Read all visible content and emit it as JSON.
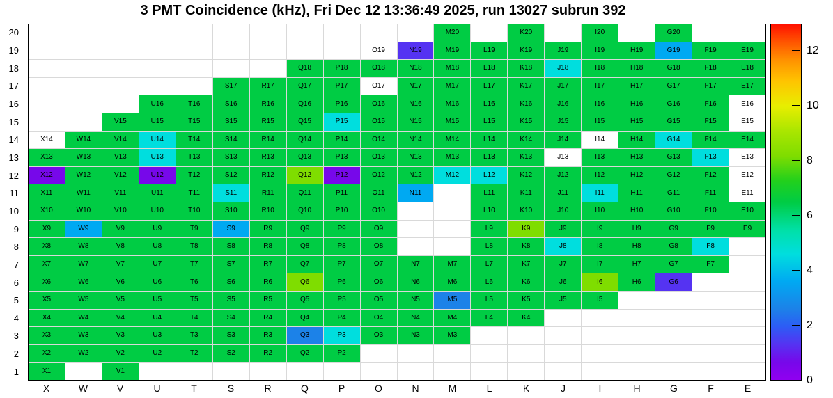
{
  "title": "3 PMT Coincidence (kHz), Fri Dec 12 13:36:49 2025, run 13027 subrun 392",
  "chart_data": {
    "type": "heatmap",
    "title": "3 PMT Coincidence (kHz), Fri Dec 12 13:36:49 2025, run 13027 subrun 392",
    "value_unit": "kHz",
    "x_categories": [
      "X",
      "W",
      "V",
      "U",
      "T",
      "S",
      "R",
      "Q",
      "P",
      "O",
      "N",
      "M",
      "L",
      "K",
      "J",
      "I",
      "H",
      "G",
      "F",
      "E"
    ],
    "y_ticks_top_to_bottom": [
      20,
      19,
      18,
      17,
      16,
      15,
      14,
      13,
      12,
      11,
      10,
      9,
      8,
      7,
      6,
      5,
      4,
      3,
      2,
      1
    ],
    "zlim": [
      0,
      13
    ],
    "colorbar_ticks": [
      0,
      2,
      4,
      6,
      8,
      10,
      12
    ],
    "legend_position": "right",
    "grid": true,
    "palette": {
      "g": {
        "hex": "#00cc44",
        "value": 6.5,
        "meaning": "green ~6.5 kHz"
      },
      "yg": {
        "hex": "#7fdd00",
        "value": 8.2,
        "meaning": "yellow-green ~8 kHz"
      },
      "c": {
        "hex": "#00dede",
        "value": 4.6,
        "meaning": "cyan ~4.5 kHz"
      },
      "bc": {
        "hex": "#00a9f2",
        "value": 3.6,
        "meaning": "blue-cyan ~3.5 kHz"
      },
      "b": {
        "hex": "#1c82e8",
        "value": 2.6,
        "meaning": "blue ~2.5 kHz"
      },
      "bv": {
        "hex": "#5533f2",
        "value": 1.3,
        "meaning": "blue-violet ~1.3 kHz"
      },
      "p": {
        "hex": "#7708ea",
        "value": 0.6,
        "meaning": "violet ~0.6 kHz"
      },
      "w": {
        "hex": "#ffffff",
        "value": null,
        "meaning": "labeled cell, no fill value shown"
      }
    },
    "rows": [
      {
        "y": 20,
        "cells": [
          null,
          null,
          null,
          null,
          null,
          null,
          null,
          null,
          null,
          null,
          null,
          "g",
          null,
          "g",
          null,
          "g",
          null,
          "g",
          null,
          null
        ]
      },
      {
        "y": 19,
        "cells": [
          null,
          null,
          null,
          null,
          null,
          null,
          null,
          null,
          null,
          "w",
          "bv",
          "g",
          "g",
          "g",
          "g",
          "g",
          "g",
          "bc",
          "g",
          "g"
        ]
      },
      {
        "y": 18,
        "cells": [
          null,
          null,
          null,
          null,
          null,
          null,
          null,
          "g",
          "g",
          "g",
          "g",
          "g",
          "g",
          "g",
          "c",
          "g",
          "g",
          "g",
          "g",
          "g"
        ]
      },
      {
        "y": 17,
        "cells": [
          null,
          null,
          null,
          null,
          null,
          "g",
          "g",
          "g",
          "g",
          "w",
          "g",
          "g",
          "g",
          "g",
          "g",
          "g",
          "g",
          "g",
          "g",
          "g"
        ]
      },
      {
        "y": 16,
        "cells": [
          null,
          null,
          null,
          "g",
          "g",
          "g",
          "g",
          "g",
          "g",
          "g",
          "g",
          "g",
          "g",
          "g",
          "g",
          "g",
          "g",
          "g",
          "g",
          "w"
        ]
      },
      {
        "y": 15,
        "cells": [
          null,
          null,
          "g",
          "g",
          "g",
          "g",
          "g",
          "g",
          "c",
          "g",
          "g",
          "g",
          "g",
          "g",
          "g",
          "g",
          "g",
          "g",
          "g",
          "w"
        ]
      },
      {
        "y": 14,
        "cells": [
          "w",
          "g",
          "g",
          "c",
          "g",
          "g",
          "g",
          "g",
          "g",
          "g",
          "g",
          "g",
          "g",
          "g",
          "g",
          "w",
          "g",
          "c",
          "g",
          "g"
        ]
      },
      {
        "y": 13,
        "cells": [
          "g",
          "g",
          "g",
          "c",
          "g",
          "g",
          "g",
          "g",
          "g",
          "g",
          "g",
          "g",
          "g",
          "g",
          "w",
          "g",
          "g",
          "g",
          "c",
          "w"
        ]
      },
      {
        "y": 12,
        "cells": [
          "p",
          "g",
          "g",
          "p",
          "g",
          "g",
          "g",
          "yg",
          "p",
          "g",
          "g",
          "c",
          "c",
          "g",
          "g",
          "g",
          "g",
          "g",
          "g",
          "w"
        ]
      },
      {
        "y": 11,
        "cells": [
          "g",
          "g",
          "g",
          "g",
          "g",
          "c",
          "g",
          "g",
          "g",
          "g",
          "bc",
          null,
          "g",
          "g",
          "g",
          "c",
          "g",
          "g",
          "g",
          "w"
        ]
      },
      {
        "y": 10,
        "cells": [
          "g",
          "g",
          "g",
          "g",
          "g",
          "g",
          "g",
          "g",
          "g",
          "g",
          null,
          null,
          "g",
          "g",
          "g",
          "g",
          "g",
          "g",
          "g",
          "g"
        ]
      },
      {
        "y": 9,
        "cells": [
          "g",
          "bc",
          "g",
          "g",
          "g",
          "bc",
          "g",
          "g",
          "g",
          "g",
          null,
          null,
          "g",
          "yg",
          "g",
          "g",
          "g",
          "g",
          "g",
          "g"
        ]
      },
      {
        "y": 8,
        "cells": [
          "g",
          "g",
          "g",
          "g",
          "g",
          "g",
          "g",
          "g",
          "g",
          "g",
          null,
          null,
          "g",
          "g",
          "c",
          "g",
          "g",
          "g",
          "c",
          null
        ]
      },
      {
        "y": 7,
        "cells": [
          "g",
          "g",
          "g",
          "g",
          "g",
          "g",
          "g",
          "g",
          "g",
          "g",
          "g",
          "g",
          "g",
          "g",
          "g",
          "g",
          "g",
          "g",
          "g",
          null
        ]
      },
      {
        "y": 6,
        "cells": [
          "g",
          "g",
          "g",
          "g",
          "g",
          "g",
          "g",
          "yg",
          "g",
          "g",
          "g",
          "g",
          "g",
          "g",
          "g",
          "yg",
          "g",
          "bv",
          null,
          null
        ]
      },
      {
        "y": 5,
        "cells": [
          "g",
          "g",
          "g",
          "g",
          "g",
          "g",
          "g",
          "g",
          "g",
          "g",
          "g",
          "b",
          "g",
          "g",
          "g",
          "g",
          null,
          null,
          null,
          null
        ]
      },
      {
        "y": 4,
        "cells": [
          "g",
          "g",
          "g",
          "g",
          "g",
          "g",
          "g",
          "g",
          "g",
          "g",
          "g",
          "g",
          "g",
          "g",
          null,
          null,
          null,
          null,
          null,
          null
        ]
      },
      {
        "y": 3,
        "cells": [
          "g",
          "g",
          "g",
          "g",
          "g",
          "g",
          "g",
          "b",
          "c",
          "g",
          "g",
          "g",
          null,
          null,
          null,
          null,
          null,
          null,
          null,
          null
        ]
      },
      {
        "y": 2,
        "cells": [
          "g",
          "g",
          "g",
          "g",
          "g",
          "g",
          "g",
          "g",
          "g",
          null,
          null,
          null,
          null,
          null,
          null,
          null,
          null,
          null,
          null,
          null
        ]
      },
      {
        "y": 1,
        "cells": [
          "g",
          null,
          "g",
          null,
          null,
          null,
          null,
          null,
          null,
          null,
          null,
          null,
          null,
          null,
          null,
          null,
          null,
          null,
          null,
          null
        ]
      }
    ]
  }
}
